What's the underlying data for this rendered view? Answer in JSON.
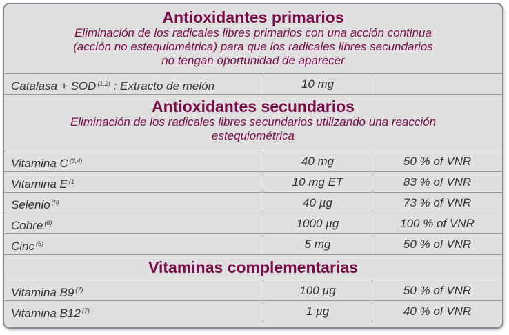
{
  "sections": [
    {
      "title": "Antioxidantes primarios",
      "description": [
        "Eliminación de los radicales libres primarios con una acción continua",
        "(acción no estequiométrica) para que los radicales libres secundarios",
        "no tengan oportunidad de aparecer"
      ],
      "rows": [
        {
          "name": "Catalasa + SOD",
          "ref": "(1,2)",
          "suffix": ": Extracto de melón",
          "amount": "10 mg",
          "vnr": ""
        }
      ]
    },
    {
      "title": "Antioxidantes secundarios",
      "description": [
        "Eliminación de los radicales libres secundarios utilizando una reacción",
        "estequiométrica"
      ],
      "rows": [
        {
          "name": "Vitamina C",
          "ref": "(3,4)",
          "amount": "40 mg",
          "vnr": "50 % of VNR"
        },
        {
          "name": "Vitamina E",
          "ref": "(1",
          "amount": "10 mg ET",
          "vnr": "83 % of VNR"
        },
        {
          "name": "Selenio",
          "ref": "(5)",
          "amount": "40 µg",
          "vnr": "73 % of VNR"
        },
        {
          "name": "Cobre",
          "ref": "(6)",
          "amount": "1000 µg",
          "vnr": "100 % of VNR"
        },
        {
          "name": "Cinc",
          "ref": "(6)",
          "amount": "5 mg",
          "vnr": "50 % of VNR"
        }
      ]
    },
    {
      "title": "Vitaminas complementarias",
      "rows": [
        {
          "name": "Vitamina B9",
          "ref": "(7)",
          "amount": "100 µg",
          "vnr": "50 % of VNR"
        },
        {
          "name": "Vitamina B12",
          "ref": "(7)",
          "amount": "1 µg",
          "vnr": "40 % of VNR"
        }
      ]
    }
  ]
}
